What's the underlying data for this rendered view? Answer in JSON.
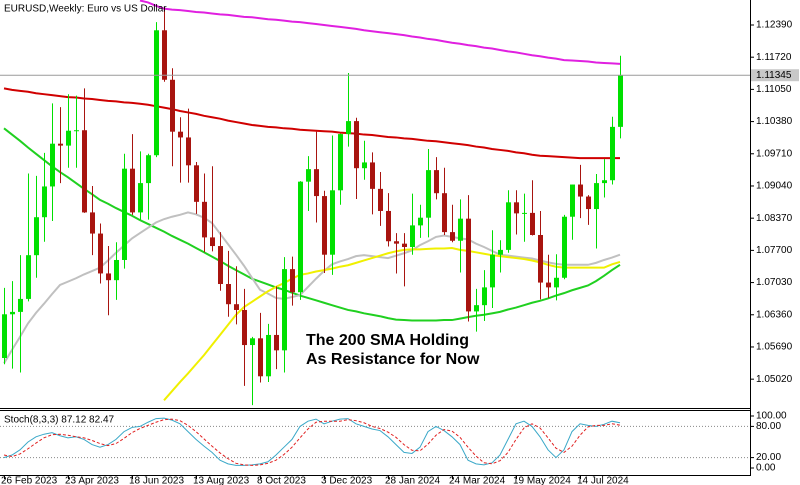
{
  "chart_data": {
    "type": "candlestick",
    "title": "EURUSD,Weekly:  Euro vs US Dollar",
    "annotations": [
      "The 200 SMA Holding",
      "As Resistance for Now"
    ],
    "annotation_color": "#e00000",
    "up_color": "#00e000",
    "down_color": "#a8140f",
    "categories": [
      "26 Feb 2023",
      null,
      null,
      null,
      null,
      null,
      null,
      null,
      "23 Apr 2023",
      null,
      null,
      null,
      null,
      null,
      null,
      null,
      "18 Jun 2023",
      null,
      null,
      null,
      null,
      null,
      null,
      null,
      "13 Aug 2023",
      null,
      null,
      null,
      null,
      null,
      null,
      null,
      "8 Oct 2023",
      null,
      null,
      null,
      null,
      null,
      null,
      null,
      "3 Dec 2023",
      null,
      null,
      null,
      null,
      null,
      null,
      null,
      "28 Jan 2024",
      null,
      null,
      null,
      null,
      null,
      null,
      null,
      "24 Mar 2024",
      null,
      null,
      null,
      null,
      null,
      null,
      null,
      "19 May 2024",
      null,
      null,
      null,
      null,
      null,
      null,
      null,
      "14 Jul 2024",
      null,
      null,
      null,
      null,
      null
    ],
    "open": [
      1.0546,
      1.0637,
      1.0642,
      1.0669,
      1.076,
      1.0839,
      1.0903,
      1.0992,
      1.0988,
      1.1019,
      1.102,
      1.0849,
      1.0805,
      1.0722,
      1.0708,
      1.075,
      1.094,
      1.0849,
      1.091,
      1.0968,
      1.1228,
      1.1125,
      1.1017,
      1.1005,
      1.0947,
      1.0871,
      1.0797,
      1.0779,
      1.07,
      1.0658,
      1.0646,
      1.0573,
      1.0587,
      1.0508,
      1.0594,
      1.0562,
      1.0731,
      1.0683,
      1.0913,
      1.0939,
      1.0883,
      1.0761,
      1.0895,
      1.1012,
      1.1039,
      1.0941,
      1.0953,
      1.0898,
      1.0852,
      1.0789,
      1.0784,
      1.0777,
      1.0822,
      1.0838,
      1.0937,
      1.0889,
      1.0808,
      1.079,
      1.0836,
      1.0643,
      1.0656,
      1.0693,
      1.0761,
      1.0771,
      1.087,
      1.0847,
      1.0848,
      1.0802,
      1.0703,
      1.0693,
      1.0713,
      1.084,
      1.0907,
      1.0882,
      1.0856,
      1.091,
      1.0916,
      1.1027
    ],
    "high": [
      1.0692,
      1.0706,
      1.076,
      1.093,
      1.0925,
      1.0973,
      1.1076,
      1.1068,
      1.1095,
      1.1092,
      1.1107,
      1.0904,
      1.0826,
      1.0779,
      1.0787,
      1.0971,
      1.1012,
      1.0976,
      1.0971,
      1.1245,
      1.1276,
      1.1149,
      1.1047,
      1.1065,
      1.0954,
      1.093,
      1.0945,
      1.0808,
      1.0769,
      1.0737,
      1.069,
      1.059,
      1.064,
      1.0617,
      1.0695,
      1.0756,
      1.0757,
      1.0914,
      1.0966,
      1.1017,
      1.0894,
      1.1009,
      1.1013,
      1.1139,
      1.1046,
      1.0998,
      1.0974,
      1.0933,
      1.0889,
      1.0806,
      1.0806,
      1.0888,
      1.0865,
      1.0981,
      1.0964,
      1.0942,
      1.0865,
      1.0876,
      1.0885,
      1.069,
      1.0729,
      1.0812,
      1.0791,
      1.0895,
      1.0895,
      1.0888,
      1.0916,
      1.0852,
      1.0761,
      1.0762,
      1.0844,
      1.0907,
      1.0948,
      1.0885,
      1.0929,
      1.096,
      1.1048,
      1.1175
    ],
    "low": [
      1.0533,
      1.0524,
      1.0516,
      1.0664,
      1.0713,
      1.0788,
      1.0831,
      1.091,
      1.0942,
      1.0942,
      1.0848,
      1.076,
      1.0701,
      1.0635,
      1.0667,
      1.0732,
      1.0844,
      1.0834,
      1.0834,
      1.0964,
      1.1121,
      1.0945,
      1.0911,
      1.0911,
      1.0846,
      1.0766,
      1.0768,
      1.0686,
      1.0632,
      1.0616,
      1.0488,
      1.0448,
      1.0495,
      1.0496,
      1.0523,
      1.0516,
      1.0655,
      1.0667,
      1.0852,
      1.0828,
      1.0723,
      1.0719,
      1.0865,
      1.0986,
      1.0877,
      1.0917,
      1.0845,
      1.0821,
      1.0778,
      1.0722,
      1.0695,
      1.0761,
      1.0796,
      1.0797,
      1.0876,
      1.0802,
      1.0787,
      1.0724,
      1.0622,
      1.0601,
      1.0623,
      1.065,
      1.0724,
      1.0765,
      1.0803,
      1.0788,
      1.0801,
      1.0668,
      1.0671,
      1.0666,
      1.071,
      1.0792,
      1.0837,
      1.0823,
      1.0774,
      1.088,
      1.0907,
      1.1003
    ],
    "close": [
      1.0637,
      1.0642,
      1.0669,
      1.076,
      1.0839,
      1.0903,
      1.0992,
      1.0988,
      1.1019,
      1.102,
      1.0849,
      1.0805,
      1.0722,
      1.0708,
      1.075,
      1.094,
      1.0849,
      1.091,
      1.0968,
      1.1228,
      1.1125,
      1.1017,
      1.1005,
      1.0947,
      1.0871,
      1.0797,
      1.0779,
      1.07,
      1.0658,
      1.0646,
      1.0573,
      1.0587,
      1.0508,
      1.0594,
      1.0562,
      1.0731,
      1.0683,
      1.0913,
      1.0939,
      1.0883,
      1.0761,
      1.0895,
      1.1012,
      1.1039,
      1.0941,
      1.0953,
      1.0898,
      1.0852,
      1.0789,
      1.0784,
      1.0777,
      1.0822,
      1.0838,
      1.0937,
      1.0889,
      1.0808,
      1.079,
      1.0836,
      1.0643,
      1.0656,
      1.0693,
      1.0761,
      1.0771,
      1.087,
      1.0847,
      1.0848,
      1.0802,
      1.0703,
      1.0693,
      1.0713,
      1.084,
      1.0907,
      1.0882,
      1.0856,
      1.091,
      1.0916,
      1.1027,
      1.11345
    ],
    "overlays": [
      {
        "color": "#e020e0",
        "values": [
          null,
          null,
          null,
          null,
          null,
          null,
          null,
          null,
          null,
          null,
          null,
          null,
          null,
          null,
          null,
          null,
          null,
          1.129,
          1.1286,
          1.1279,
          1.1273,
          1.1271,
          1.127,
          1.1268,
          1.1266,
          1.1265,
          1.1263,
          1.1261,
          1.126,
          1.1258,
          1.1256,
          1.1255,
          1.1253,
          1.1251,
          1.125,
          1.1248,
          1.1246,
          1.1245,
          1.1243,
          1.1241,
          1.1239,
          1.1237,
          1.1235,
          1.1233,
          1.1231,
          1.1228,
          1.1226,
          1.1224,
          1.1222,
          1.122,
          1.1218,
          1.1215,
          1.1213,
          1.121,
          1.1208,
          1.1205,
          1.1202,
          1.12,
          1.1197,
          1.1195,
          1.1192,
          1.119,
          1.1187,
          1.1184,
          1.1182,
          1.1179,
          1.1176,
          1.1174,
          1.1171,
          1.1169,
          1.1166,
          1.1165,
          1.1164,
          1.1163,
          1.1161,
          1.116,
          1.1159,
          1.1158
        ]
      },
      {
        "color": "#d00000",
        "values": [
          1.1107,
          1.1104,
          1.1102,
          1.11,
          1.1097,
          1.1095,
          1.1093,
          1.1091,
          1.1089,
          1.1088,
          1.1086,
          1.1085,
          1.1083,
          1.1081,
          1.108,
          1.1078,
          1.1077,
          1.1075,
          1.1073,
          1.107,
          1.1067,
          1.1064,
          1.106,
          1.1057,
          1.1054,
          1.105,
          1.1047,
          1.1044,
          1.104,
          1.1037,
          1.1034,
          1.1031,
          1.1029,
          1.1027,
          1.1026,
          1.1024,
          1.1023,
          1.1021,
          1.102,
          1.1019,
          1.1018,
          1.1017,
          1.1015,
          1.1014,
          1.1013,
          1.1011,
          1.101,
          1.1008,
          1.1006,
          1.1005,
          1.1003,
          1.1002,
          1.1,
          1.0998,
          1.0997,
          1.0995,
          1.0993,
          1.0991,
          1.0989,
          1.0986,
          1.0984,
          1.0981,
          1.0979,
          1.0977,
          1.0974,
          1.0972,
          1.0969,
          1.0967,
          1.0966,
          1.0965,
          1.0964,
          1.0963,
          1.0962,
          1.0962,
          1.0962,
          1.0962,
          1.0962,
          1.0962
        ]
      },
      {
        "color": "#20d020",
        "values": [
          1.1024,
          1.1011,
          1.0998,
          1.0984,
          1.0971,
          1.0958,
          1.0945,
          1.0933,
          1.0922,
          1.091,
          1.0898,
          1.0887,
          1.0875,
          1.0867,
          1.0858,
          1.085,
          1.0842,
          1.0833,
          1.0825,
          1.0817,
          1.0809,
          1.08,
          1.0792,
          1.0784,
          1.0775,
          1.0766,
          1.0757,
          1.0748,
          1.0738,
          1.0729,
          1.072,
          1.0711,
          1.0705,
          1.0699,
          1.0693,
          1.0688,
          1.0682,
          1.0676,
          1.0671,
          1.0666,
          1.0661,
          1.0656,
          1.0651,
          1.0646,
          1.0643,
          1.0639,
          1.0636,
          1.0633,
          1.0629,
          1.0626,
          1.0625,
          1.0624,
          1.0624,
          1.0624,
          1.0624,
          1.0625,
          1.0625,
          1.0628,
          1.0631,
          1.0634,
          1.0636,
          1.0639,
          1.0642,
          1.0647,
          1.0651,
          1.0656,
          1.0661,
          1.0665,
          1.067,
          1.0676,
          1.0681,
          1.0687,
          1.0692,
          1.0697,
          1.0706,
          1.0717,
          1.0729,
          1.074
        ]
      },
      {
        "color": "#c0c0c0",
        "values": [
          1.0535,
          1.0563,
          1.059,
          1.0618,
          1.064,
          1.0659,
          1.0679,
          1.0698,
          1.0705,
          1.0712,
          1.072,
          1.0727,
          1.0734,
          1.0749,
          1.0765,
          1.078,
          1.0795,
          1.0806,
          1.0817,
          1.0828,
          1.0835,
          1.084,
          1.0844,
          1.0849,
          1.0845,
          1.0838,
          1.0827,
          1.0805,
          1.0783,
          1.0761,
          1.0738,
          1.0713,
          1.0688,
          1.068,
          1.0671,
          1.0669,
          1.0673,
          1.0677,
          1.0694,
          1.0711,
          1.0727,
          1.0741,
          1.0747,
          1.0752,
          1.0758,
          1.076,
          1.0758,
          1.0756,
          1.0754,
          1.0759,
          1.0764,
          1.077,
          1.0781,
          1.0789,
          1.0798,
          1.0801,
          1.0798,
          1.0795,
          1.0793,
          1.0784,
          1.0777,
          1.0769,
          1.0761,
          1.0759,
          1.0757,
          1.0755,
          1.0753,
          1.0749,
          1.0745,
          1.0742,
          1.074,
          1.074,
          1.074,
          1.074,
          1.0744,
          1.075,
          1.0755,
          1.0761
        ]
      },
      {
        "color": "#f0f000",
        "values": [
          null,
          null,
          null,
          null,
          null,
          null,
          null,
          null,
          null,
          null,
          null,
          null,
          null,
          null,
          null,
          null,
          null,
          null,
          null,
          null,
          1.0458,
          1.0477,
          1.0496,
          1.0514,
          1.0533,
          1.0552,
          1.0573,
          1.0594,
          1.0615,
          1.0636,
          1.0652,
          1.0663,
          1.0674,
          1.0685,
          1.0694,
          1.0702,
          1.0711,
          1.0719,
          1.0722,
          1.0726,
          1.0729,
          1.0732,
          1.0736,
          1.0739,
          1.0744,
          1.0749,
          1.0754,
          1.0759,
          1.0764,
          1.0768,
          1.0771,
          1.0772,
          1.0772,
          1.0773,
          1.0774,
          1.0774,
          1.0775,
          1.0771,
          1.0769,
          1.0766,
          1.0763,
          1.076,
          1.0758,
          1.0756,
          1.0754,
          1.0752,
          1.0749,
          1.0745,
          1.074,
          1.0736,
          1.0734,
          1.0734,
          1.0734,
          1.0734,
          1.0734,
          1.0734,
          1.0741,
          1.0746
        ]
      }
    ],
    "last_price": {
      "value": 1.11345,
      "label": "1.11345"
    },
    "ylim": [
      1.0442,
      1.1291
    ],
    "yticks": [
      {
        "value": 1.1239,
        "label": "1.12390"
      },
      {
        "value": 1.1172,
        "label": "1.11720"
      },
      {
        "value": 1.1105,
        "label": "1.11050"
      },
      {
        "value": 1.1038,
        "label": "1.10380"
      },
      {
        "value": 1.0971,
        "label": "1.09710"
      },
      {
        "value": 1.0904,
        "label": "1.09040"
      },
      {
        "value": 1.0837,
        "label": "1.08370"
      },
      {
        "value": 1.077,
        "label": "1.07700"
      },
      {
        "value": 1.0703,
        "label": "1.07030"
      },
      {
        "value": 1.0636,
        "label": "1.06360"
      },
      {
        "value": 1.0569,
        "label": "1.05690"
      },
      {
        "value": 1.0502,
        "label": "1.05020"
      }
    ],
    "indicator": {
      "type": "line",
      "title": "Stoch(8,3,3) 87.12 82.47",
      "ylim": [
        0,
        100
      ],
      "yticks": [
        {
          "value": 100,
          "label": "100.00"
        },
        {
          "value": 80,
          "label": "80.00"
        },
        {
          "value": 20,
          "label": "20.00"
        },
        {
          "value": 0,
          "label": "0.00"
        }
      ],
      "series": [
        {
          "color": "#3aa8c8",
          "dashed": false,
          "values": [
            20,
            25,
            35,
            50,
            60,
            65,
            68,
            62,
            58,
            60,
            55,
            45,
            40,
            45,
            55,
            70,
            78,
            80,
            88,
            95,
            96,
            92,
            85,
            70,
            55,
            42,
            30,
            15,
            8,
            5,
            5,
            6,
            8,
            12,
            25,
            40,
            55,
            80,
            90,
            94,
            85,
            90,
            94,
            95,
            85,
            80,
            75,
            72,
            60,
            45,
            30,
            28,
            40,
            70,
            80,
            72,
            60,
            45,
            15,
            8,
            6,
            10,
            25,
            55,
            85,
            90,
            80,
            60,
            35,
            20,
            35,
            70,
            85,
            82,
            80,
            84,
            90,
            87.12
          ]
        },
        {
          "color": "#e02020",
          "dashed": true,
          "values": [
            25,
            22,
            27,
            37,
            48,
            58,
            64,
            65,
            63,
            60,
            58,
            53,
            47,
            43,
            47,
            57,
            68,
            76,
            82,
            88,
            93,
            94,
            91,
            82,
            70,
            56,
            42,
            29,
            18,
            9,
            6,
            5,
            6,
            9,
            15,
            26,
            40,
            58,
            75,
            88,
            90,
            90,
            90,
            93,
            91,
            87,
            80,
            76,
            69,
            59,
            45,
            34,
            33,
            46,
            63,
            74,
            71,
            59,
            40,
            23,
            10,
            8,
            14,
            30,
            55,
            77,
            85,
            77,
            58,
            38,
            30,
            42,
            63,
            79,
            82,
            82,
            85,
            82.47
          ]
        }
      ]
    }
  }
}
